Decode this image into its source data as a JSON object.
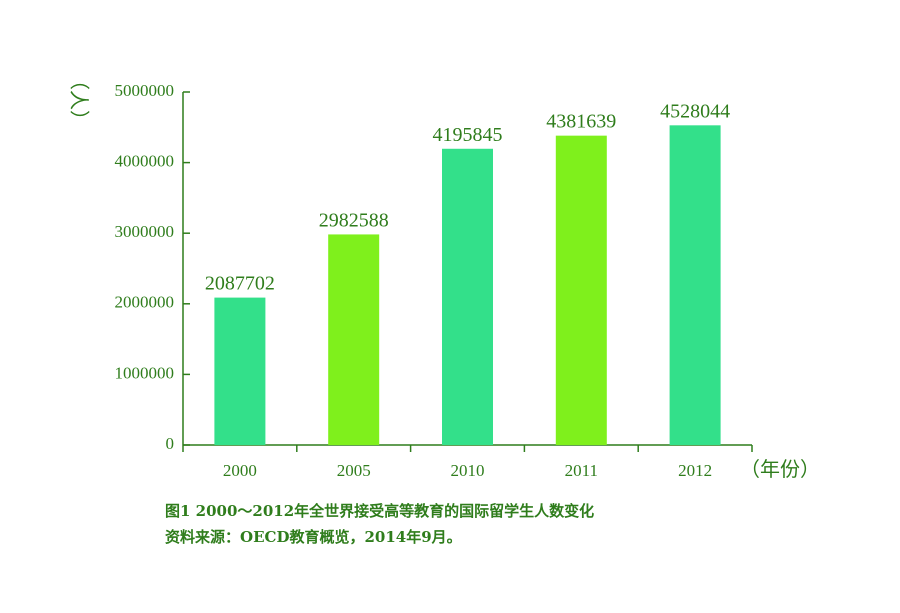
{
  "chart_data": {
    "type": "bar",
    "categories": [
      "2000",
      "2005",
      "2010",
      "2011",
      "2012"
    ],
    "values": [
      2087702,
      2982588,
      4195845,
      4381639,
      4528044
    ],
    "value_labels": [
      "2087702",
      "2982588",
      "4195845",
      "4381639",
      "4528044"
    ],
    "bar_colors": [
      "#33e08a",
      "#7ff01c",
      "#33e08a",
      "#7ff01c",
      "#33e08a"
    ],
    "y_ticks": [
      0,
      1000000,
      2000000,
      3000000,
      4000000,
      5000000
    ],
    "y_tick_labels": [
      "0",
      "1000000",
      "2000000",
      "3000000",
      "4000000",
      "5000000"
    ],
    "ylim": [
      0,
      5000000
    ],
    "ylabel": "人",
    "xlabel": "年份",
    "grid": false
  },
  "caption": {
    "line1": "图1  2000～2012年全世界接受高等教育的国际留学生人数变化",
    "line2": "资料来源：OECD教育概览，2014年9月。"
  },
  "colors": {
    "text": "#2f7d1c",
    "axis": "#2f7d1c"
  }
}
